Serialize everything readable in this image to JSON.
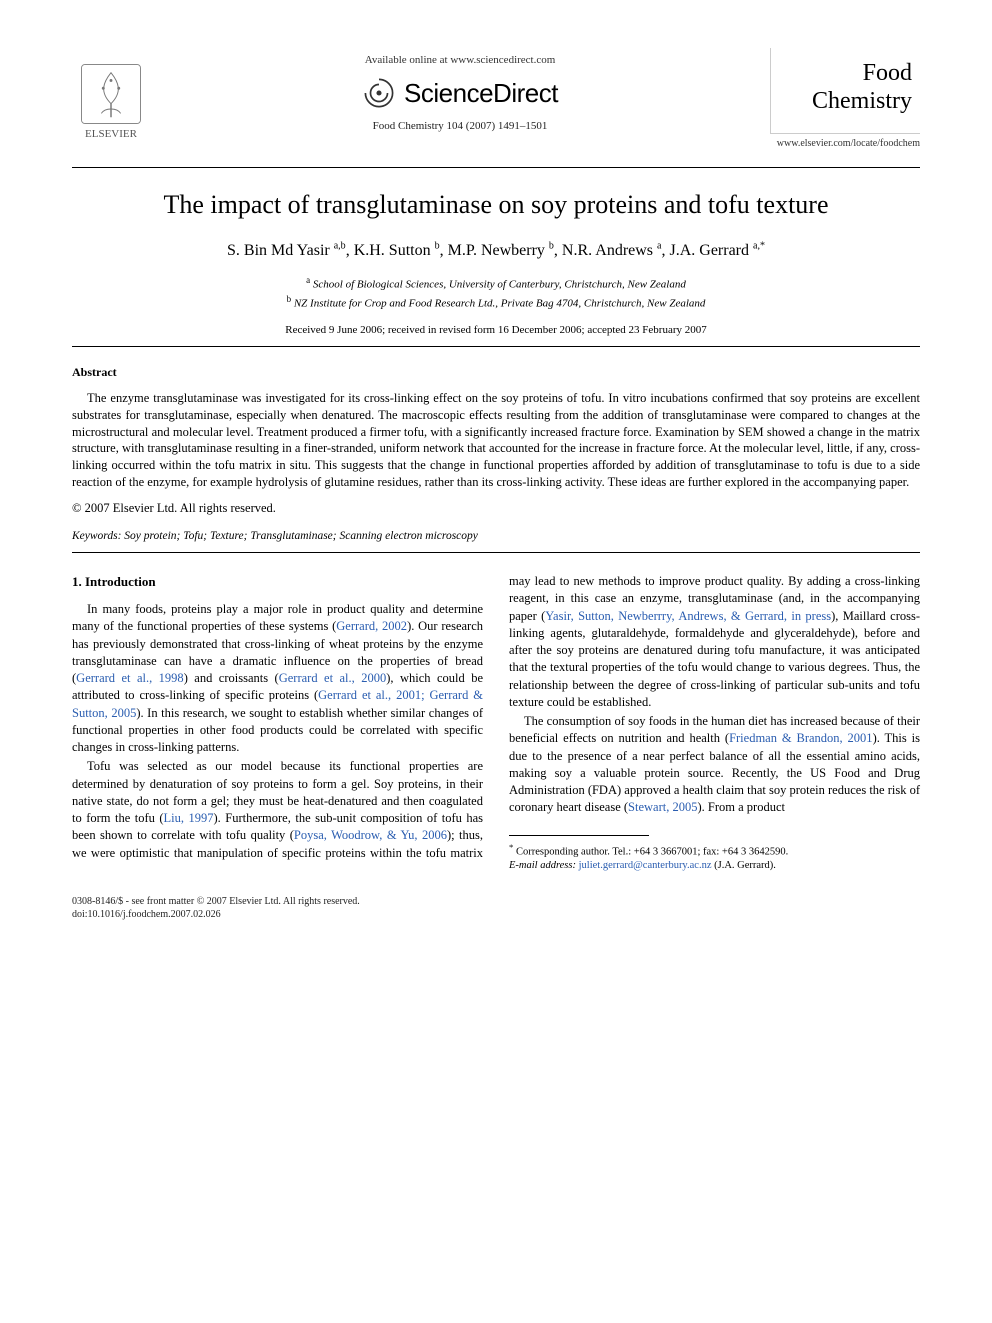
{
  "header": {
    "available_line": "Available online at www.sciencedirect.com",
    "sciencedirect": "ScienceDirect",
    "journal_ref": "Food Chemistry 104 (2007) 1491–1501",
    "elsevier_label": "ELSEVIER",
    "journal_name_line1": "Food",
    "journal_name_line2": "Chemistry",
    "journal_url": "www.elsevier.com/locate/foodchem"
  },
  "title": "The impact of transglutaminase on soy proteins and tofu texture",
  "authors_html": "S. Bin Md Yasir <sup>a,b</sup>, K.H. Sutton <sup>b</sup>, M.P. Newberry <sup>b</sup>, N.R. Andrews <sup>a</sup>, J.A. Gerrard <sup>a,*</sup>",
  "affiliations": {
    "a": "School of Biological Sciences, University of Canterbury, Christchurch, New Zealand",
    "b": "NZ Institute for Crop and Food Research Ltd., Private Bag 4704, Christchurch, New Zealand"
  },
  "dates": "Received 9 June 2006; received in revised form 16 December 2006; accepted 23 February 2007",
  "abstract": {
    "heading": "Abstract",
    "body": "The enzyme transglutaminase was investigated for its cross-linking effect on the soy proteins of tofu. In vitro incubations confirmed that soy proteins are excellent substrates for transglutaminase, especially when denatured. The macroscopic effects resulting from the addition of transglutaminase were compared to changes at the microstructural and molecular level. Treatment produced a firmer tofu, with a significantly increased fracture force. Examination by SEM showed a change in the matrix structure, with transglutaminase resulting in a finer-stranded, uniform network that accounted for the increase in fracture force. At the molecular level, little, if any, cross-linking occurred within the tofu matrix in situ. This suggests that the change in functional properties afforded by addition of transglutaminase to tofu is due to a side reaction of the enzyme, for example hydrolysis of glutamine residues, rather than its cross-linking activity. These ideas are further explored in the accompanying paper.",
    "copyright": "© 2007 Elsevier Ltd. All rights reserved."
  },
  "keywords": {
    "label": "Keywords:",
    "list": "Soy protein; Tofu; Texture; Transglutaminase; Scanning electron microscopy"
  },
  "intro": {
    "heading": "1. Introduction",
    "p1_a": "In many foods, proteins play a major role in product quality and determine many of the functional properties of these systems (",
    "p1_l1": "Gerrard, 2002",
    "p1_b": "). Our research has previously demonstrated that cross-linking of wheat proteins by the enzyme transglutaminase can have a dramatic influence on the properties of bread (",
    "p1_l2": "Gerrard et al., 1998",
    "p1_c": ") and croissants (",
    "p1_l3": "Gerrard et al., 2000",
    "p1_d": "), which could be attributed to cross-linking of specific proteins (",
    "p1_l4": "Gerrard et al., 2001; Gerrard & Sutton, 2005",
    "p1_e": "). In this research, we sought to establish whether similar changes of functional properties in other food products could be correlated with specific changes in cross-linking patterns.",
    "p2_a": "Tofu was selected as our model because its functional properties are determined by denaturation of soy proteins to form a gel. Soy proteins, in their native state, do not form a gel; they must be heat-denatured and then coagulated to form the tofu (",
    "p2_l1": "Liu, 1997",
    "p2_b": "). Furthermore, the sub-unit composition of tofu has been shown to correlate with tofu quality (",
    "p2_l2": "Poysa, Woodrow, & Yu, 2006",
    "p2_c": "); thus, we were optimistic that manipulation of specific proteins within the tofu matrix may lead to new methods to improve product quality. By adding a cross-linking reagent, in this case an enzyme, transglutaminase (and, in the accompanying paper (",
    "p2_l3": "Yasir, Sutton, Newberrry, Andrews, & Gerrard, in press",
    "p2_d": "), Maillard cross-linking agents, glutaraldehyde, formaldehyde and glyceraldehyde), before and after the soy proteins are denatured during tofu manufacture, it was anticipated that the textural properties of the tofu would change to various degrees. Thus, the relationship between the degree of cross-linking of particular sub-units and tofu texture could be established.",
    "p3_a": "The consumption of soy foods in the human diet has increased because of their beneficial effects on nutrition and health (",
    "p3_l1": "Friedman & Brandon, 2001",
    "p3_b": "). This is due to the presence of a near perfect balance of all the essential amino acids, making soy a valuable protein source. Recently, the US Food and Drug Administration (FDA) approved a health claim that soy protein reduces the risk of coronary heart disease (",
    "p3_l2": "Stewart, 2005",
    "p3_c": "). From a product"
  },
  "footnote": {
    "corr": "Corresponding author. Tel.: +64 3 3667001; fax: +64 3 3642590.",
    "email_label": "E-mail address:",
    "email": "juliet.gerrard@canterbury.ac.nz",
    "email_tail": "(J.A. Gerrard)."
  },
  "footer": {
    "issn": "0308-8146/$ - see front matter © 2007 Elsevier Ltd. All rights reserved.",
    "doi": "doi:10.1016/j.foodchem.2007.02.026"
  },
  "colors": {
    "link": "#2a5db0",
    "text": "#000000",
    "bg": "#ffffff"
  }
}
